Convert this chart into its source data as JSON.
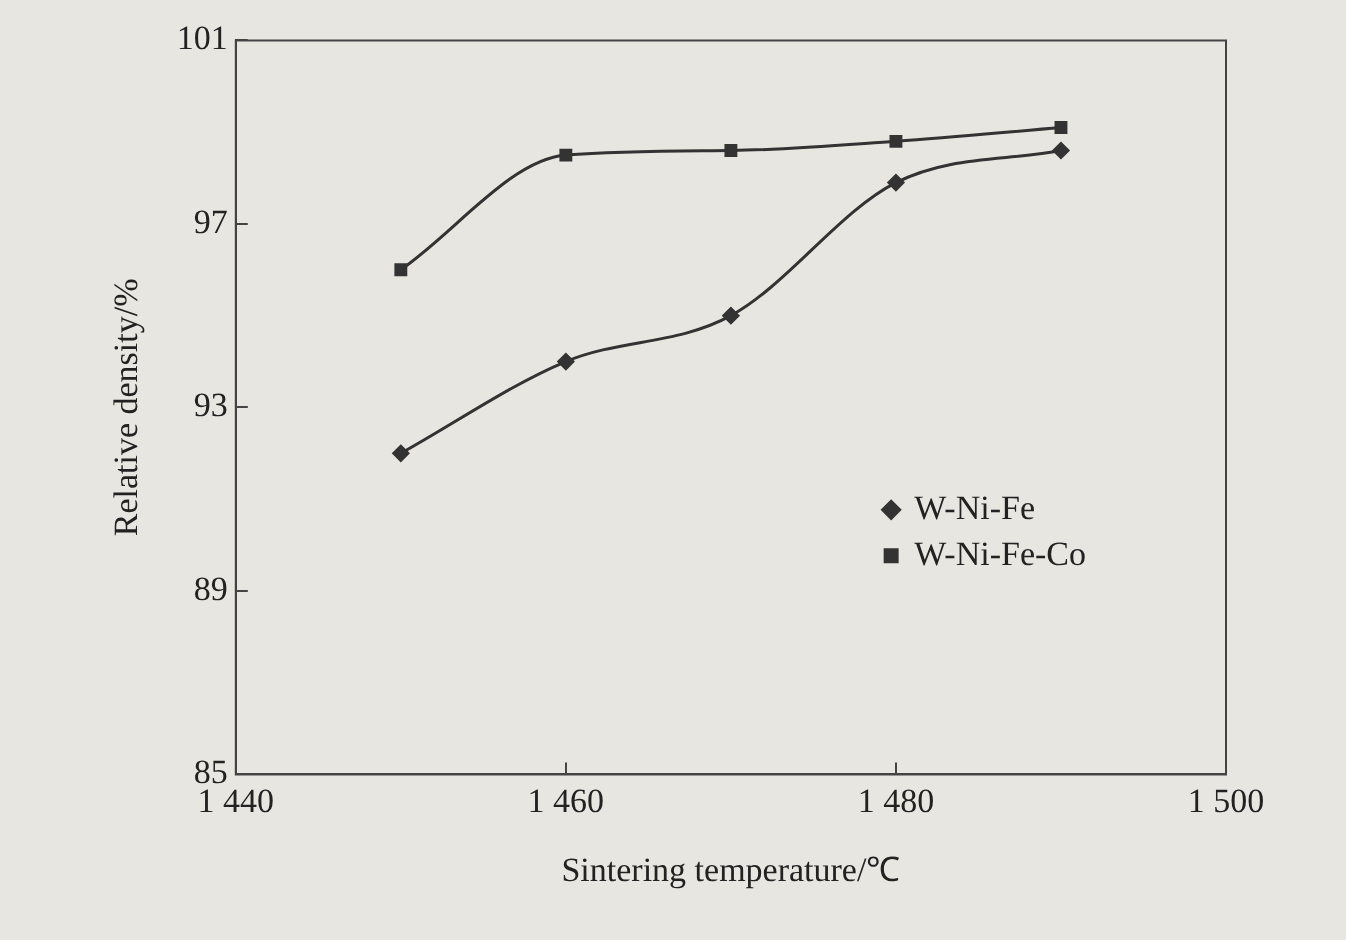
{
  "chart_data": {
    "type": "line",
    "xlabel": "Sintering temperature/℃",
    "ylabel": "Relative density/%",
    "x": [
      1450,
      1460,
      1470,
      1480,
      1490
    ],
    "series": [
      {
        "name": "W-Ni-Fe",
        "color": "#333333",
        "marker": "diamond",
        "values": [
          92.0,
          94.0,
          95.0,
          97.9,
          98.6
        ]
      },
      {
        "name": "W-Ni-Fe-Co",
        "color": "#333333",
        "marker": "square",
        "values": [
          96.0,
          98.5,
          98.6,
          98.8,
          99.1
        ]
      }
    ],
    "xlim": [
      1440,
      1500
    ],
    "xticks": [
      {
        "value": 1440,
        "label": "1 440"
      },
      {
        "value": 1460,
        "label": "1 460"
      },
      {
        "value": 1480,
        "label": "1 480"
      },
      {
        "value": 1500,
        "label": "1 500"
      }
    ],
    "ylim": [
      85,
      101
    ],
    "yticks": [
      85,
      89,
      93,
      97,
      101
    ],
    "grid": false,
    "legend": "right",
    "line_style": "solid"
  }
}
